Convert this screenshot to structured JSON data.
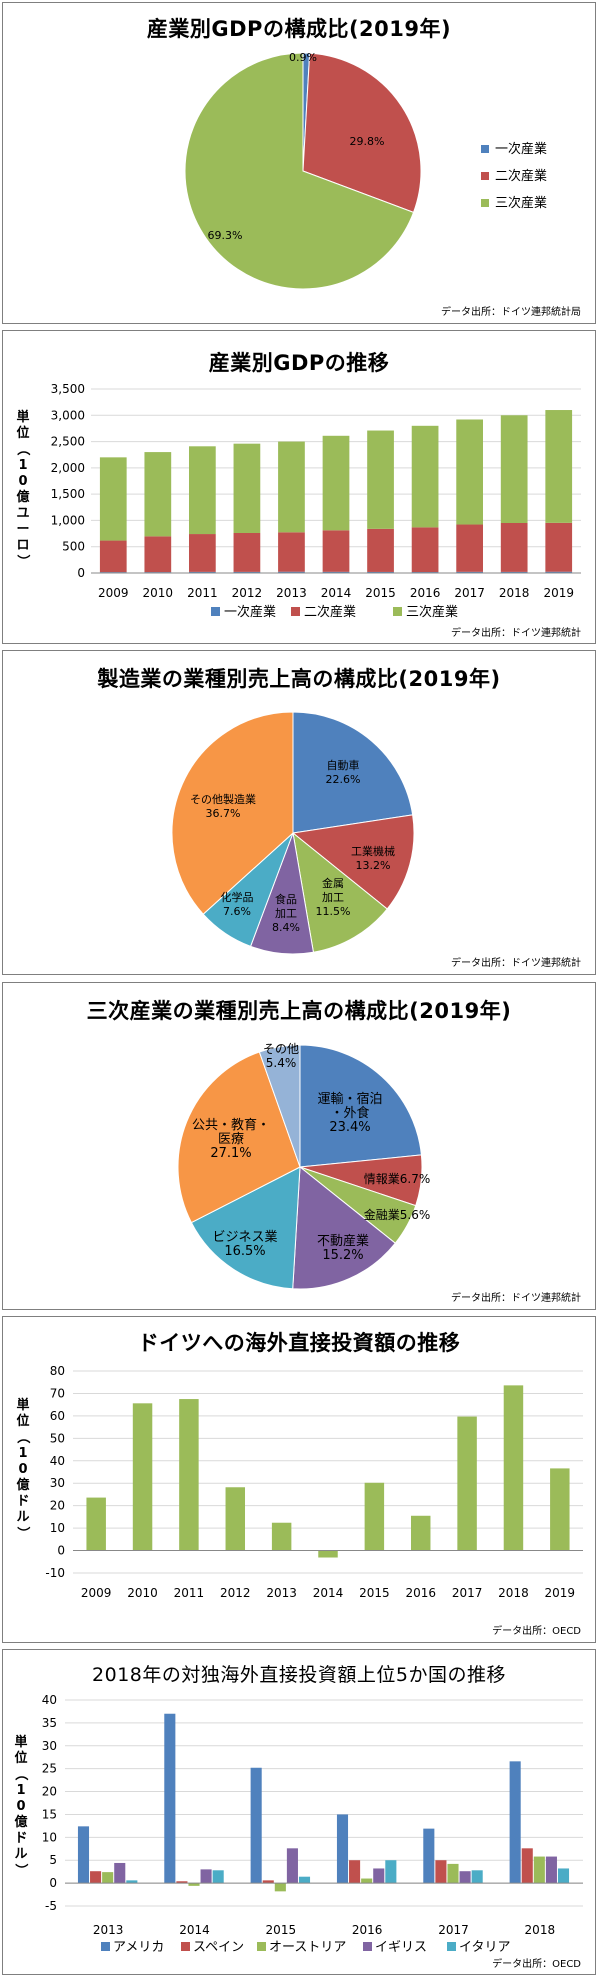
{
  "charts": [
    {
      "type": "pie",
      "title": "産業別GDPの構成比(2019年)",
      "source": "データ出所：ドイツ連邦統計局",
      "slices": [
        {
          "label": "一次産業",
          "value": 0.9,
          "display": "0.9%",
          "color": "#4f81bd"
        },
        {
          "label": "二次産業",
          "value": 29.8,
          "display": "29.8%",
          "color": "#c0504d"
        },
        {
          "label": "三次産業",
          "value": 69.3,
          "display": "69.3%",
          "color": "#9bbb59"
        }
      ],
      "legend": [
        "一次産業",
        "二次産業",
        "三次産業"
      ]
    },
    {
      "type": "bar",
      "stacked": true,
      "title": "産業別GDPの推移",
      "source": "データ出所：ドイツ連邦統計",
      "ylabel": "単位（10億ユーロ）",
      "ylim": [
        0,
        3500
      ],
      "ticks": [
        "0",
        "500",
        "1,000",
        "1,500",
        "2,000",
        "2,500",
        "3,000",
        "3,500"
      ],
      "categories": [
        "2009",
        "2010",
        "2011",
        "2012",
        "2013",
        "2014",
        "2015",
        "2016",
        "2017",
        "2018",
        "2019"
      ],
      "series": [
        {
          "name": "一次産業",
          "color": "#4f81bd",
          "values": [
            17,
            17,
            21,
            21,
            24,
            22,
            20,
            18,
            22,
            21,
            24
          ]
        },
        {
          "name": "二次産業",
          "color": "#c0504d",
          "values": [
            600,
            680,
            720,
            740,
            750,
            790,
            820,
            850,
            900,
            930,
            930
          ]
        },
        {
          "name": "三次産業",
          "color": "#9bbb59",
          "values": [
            1583,
            1603,
            1669,
            1699,
            1726,
            1798,
            1870,
            1932,
            1998,
            2049,
            2146
          ]
        }
      ]
    },
    {
      "type": "pie",
      "title": "製造業の業種別売上高の構成比(2019年)",
      "source": "データ出所：ドイツ連邦統計",
      "slices": [
        {
          "label": "自動車",
          "value": 22.6,
          "display": "22.6%",
          "color": "#4f81bd"
        },
        {
          "label": "工業機械",
          "value": 13.2,
          "display": "13.2%",
          "color": "#c0504d"
        },
        {
          "label": "金属加工",
          "value": 11.5,
          "display": "11.5%",
          "color": "#9bbb59"
        },
        {
          "label": "食品加工",
          "value": 8.4,
          "display": "8.4%",
          "color": "#8064a2"
        },
        {
          "label": "化学品",
          "value": 7.6,
          "display": "7.6%",
          "color": "#4bacc6"
        },
        {
          "label": "その他製造業",
          "value": 36.7,
          "display": "36.7%",
          "color": "#f79646"
        }
      ]
    },
    {
      "type": "pie",
      "title": "三次産業の業種別売上高の構成比(2019年)",
      "source": "データ出所：ドイツ連邦統計",
      "slices": [
        {
          "label": "運輸・宿泊・外食",
          "value": 23.4,
          "display": "23.4%",
          "color": "#4f81bd"
        },
        {
          "label": "情報業",
          "value": 6.7,
          "display": "6.7%",
          "color": "#c0504d"
        },
        {
          "label": "金融業",
          "value": 5.6,
          "display": "5.6%",
          "color": "#9bbb59"
        },
        {
          "label": "不動産業",
          "value": 15.2,
          "display": "15.2%",
          "color": "#8064a2"
        },
        {
          "label": "ビジネス業",
          "value": 16.5,
          "display": "16.5%",
          "color": "#4bacc6"
        },
        {
          "label": "公共・教育・医療",
          "value": 27.1,
          "display": "27.1%",
          "color": "#f79646"
        },
        {
          "label": "その他",
          "value": 5.4,
          "display": "5.4%",
          "color": "#95b3d7"
        }
      ]
    },
    {
      "type": "bar",
      "title": "ドイツへの海外直接投資額の推移",
      "source": "データ出所：OECD",
      "ylabel": "単位（10億ドル）",
      "ylim": [
        -10,
        80
      ],
      "ticks": [
        "-10",
        "0",
        "10",
        "20",
        "30",
        "40",
        "50",
        "60",
        "70",
        "80"
      ],
      "categories": [
        "2009",
        "2010",
        "2011",
        "2012",
        "2013",
        "2014",
        "2015",
        "2016",
        "2017",
        "2018",
        "2019"
      ],
      "series": [
        {
          "name": "",
          "color": "#9bbb59",
          "values": [
            23.6,
            65.6,
            67.5,
            28.2,
            12.4,
            -3.1,
            30.2,
            15.5,
            59.7,
            73.6,
            36.6
          ]
        }
      ]
    },
    {
      "type": "bar",
      "title": "2018年の対独海外直接投資額上位5か国の推移",
      "source": "データ出所：OECD",
      "ylabel": "単位（10億ドル）",
      "ylim": [
        -5,
        40
      ],
      "ticks": [
        "-5",
        "0",
        "5",
        "10",
        "15",
        "20",
        "25",
        "30",
        "35",
        "40"
      ],
      "categories": [
        "2013",
        "2014",
        "2015",
        "2016",
        "2017",
        "2018"
      ],
      "series": [
        {
          "name": "アメリカ",
          "color": "#4f81bd",
          "values": [
            12.4,
            37.0,
            25.2,
            15.0,
            11.9,
            26.6
          ]
        },
        {
          "name": "スペイン",
          "color": "#c0504d",
          "values": [
            2.6,
            0.4,
            0.6,
            5.0,
            5.0,
            7.6
          ]
        },
        {
          "name": "オーストリア",
          "color": "#9bbb59",
          "values": [
            2.4,
            -0.6,
            -1.8,
            1.0,
            4.2,
            5.8
          ]
        },
        {
          "name": "イギリス",
          "color": "#8064a2",
          "values": [
            4.4,
            3.0,
            7.6,
            3.2,
            2.6,
            5.8
          ]
        },
        {
          "name": "イタリア",
          "color": "#4bacc6",
          "values": [
            0.6,
            2.8,
            1.4,
            5.0,
            2.8,
            3.2
          ]
        }
      ]
    }
  ]
}
